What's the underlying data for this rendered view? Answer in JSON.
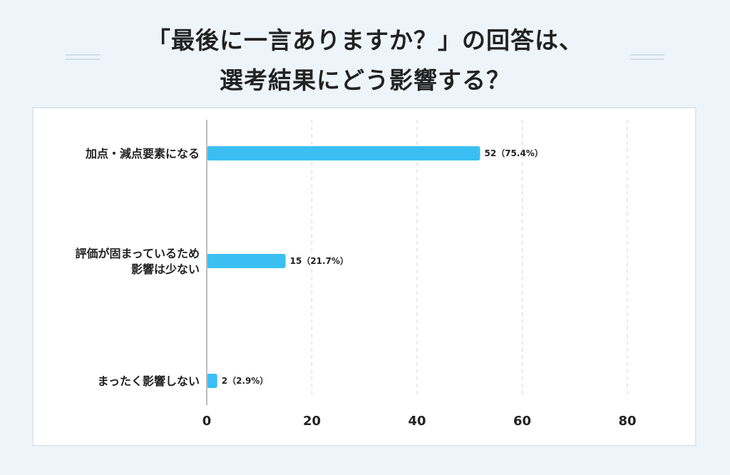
{
  "title": {
    "line1": "「最後に一言ありますか？」の回答は、",
    "line2": "選考結果にどう影響する？"
  },
  "colors": {
    "bar": "#3bbff2",
    "axis": "#bbbbbb",
    "grid": "#d6d6d6"
  },
  "chart_data": {
    "type": "bar",
    "orientation": "horizontal",
    "categories": [
      [
        "加点・減点要素になる"
      ],
      [
        "評価が固まっているため",
        "影響は少ない"
      ],
      [
        "まったく影響しない"
      ]
    ],
    "values": [
      52,
      15,
      2
    ],
    "value_labels": [
      "52（75.4%）",
      "15（21.7%）",
      "2（2.9%）"
    ],
    "percentages": [
      75.4,
      21.7,
      2.9
    ],
    "xlim": [
      0,
      80
    ],
    "xticks": [
      0,
      20,
      40,
      60,
      80
    ],
    "grid": "vertical dashed"
  }
}
